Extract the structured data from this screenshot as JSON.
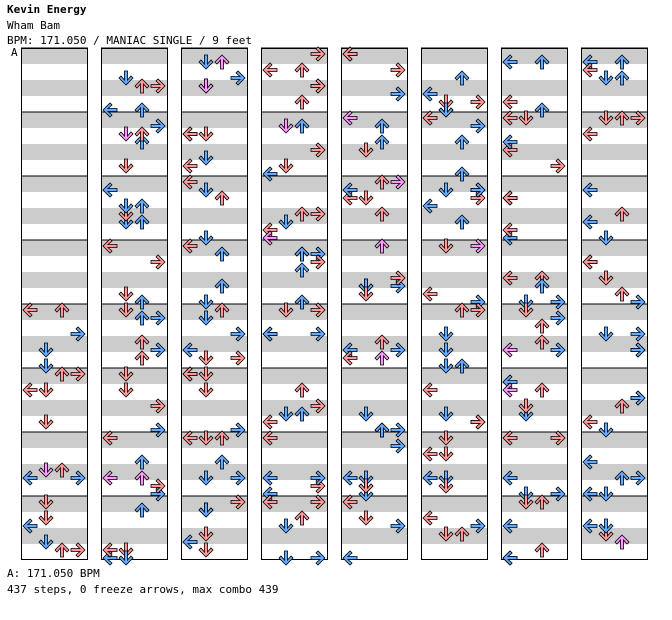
{
  "header": {
    "artist": "Kevin Energy",
    "song": "Wham Bam",
    "meta": "BPM: 171.050 / MANIAC SINGLE / 9 feet"
  },
  "bpm_marker": "A",
  "footer": {
    "bpm_line": "A: 171.050 BPM",
    "stats_line": "437 steps, 0 freeze arrows, max combo 439"
  },
  "colors": {
    "stripe": "#cccccc",
    "red_arrow": "#ff9999",
    "blue_arrow": "#66aaff",
    "pink_arrow": "#ff99ff",
    "arrow_outline": "#000000"
  },
  "chart": {
    "columns": 8,
    "measures_per_column": 8,
    "lanes": [
      "left",
      "down",
      "up",
      "right"
    ],
    "seed": 171050
  }
}
